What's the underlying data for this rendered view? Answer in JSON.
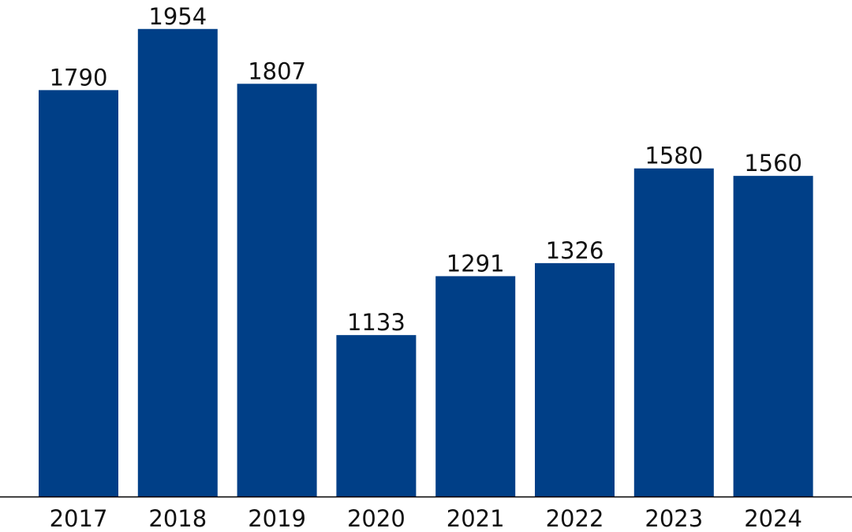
{
  "chart_data": {
    "type": "bar",
    "categories": [
      "2017",
      "2018",
      "2019",
      "2020",
      "2021",
      "2022",
      "2023",
      "2024"
    ],
    "values": [
      1790,
      1954,
      1807,
      1133,
      1291,
      1326,
      1580,
      1560
    ],
    "data_labels": [
      "1790",
      "1954",
      "1807",
      "1133",
      "1291",
      "1326",
      "1580",
      "1560"
    ],
    "ylim": [
      700,
      2000
    ],
    "grid": false,
    "bar_color": "#003f87",
    "highlight_category": "2024",
    "highlight_label_color": "#ff0000",
    "axis_color": "#000000"
  }
}
